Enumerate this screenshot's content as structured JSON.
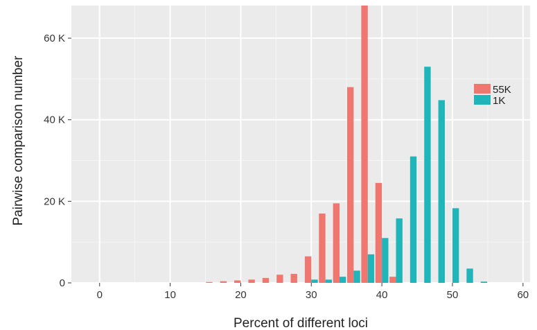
{
  "chart_data": {
    "type": "bar",
    "xlabel": "Percent of different loci",
    "ylabel": "Pairwise comparison number",
    "xlim": [
      -4,
      61
    ],
    "ylim": [
      0,
      68000
    ],
    "x_ticks": [
      0,
      10,
      20,
      30,
      40,
      50,
      60
    ],
    "x_tick_labels": [
      "0",
      "10",
      "20",
      "30",
      "40",
      "50",
      "60"
    ],
    "y_ticks": [
      0,
      20000,
      40000,
      60000
    ],
    "y_tick_labels": [
      "0",
      "20 K",
      "40 K",
      "60 K"
    ],
    "grid": true,
    "legend_position": "right",
    "x": [
      0,
      2,
      4,
      6,
      8,
      10,
      12,
      14,
      16,
      18,
      20,
      22,
      24,
      26,
      28,
      30,
      32,
      34,
      36,
      38,
      40,
      42,
      44,
      46,
      48,
      50,
      52,
      54,
      56,
      58
    ],
    "series": [
      {
        "name": "55K",
        "color": "#f0776f",
        "values": [
          0,
          0,
          0,
          0,
          0,
          0,
          0,
          0,
          200,
          400,
          600,
          800,
          1200,
          2000,
          2200,
          6500,
          17000,
          19500,
          48000,
          68000,
          24500,
          1500,
          0,
          0,
          0,
          0,
          0,
          0,
          0,
          0
        ]
      },
      {
        "name": "1K",
        "color": "#20b5b9",
        "values": [
          0,
          0,
          0,
          0,
          0,
          0,
          0,
          0,
          0,
          0,
          0,
          0,
          0,
          0,
          0,
          800,
          800,
          1500,
          3000,
          7000,
          11000,
          15800,
          31000,
          53000,
          44800,
          18300,
          3500,
          300,
          0,
          0
        ]
      }
    ]
  }
}
